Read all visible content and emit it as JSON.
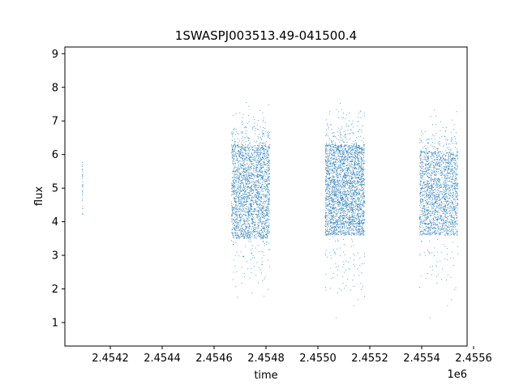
{
  "chart_data": {
    "type": "scatter",
    "title": "1SWASPJ003513.49-041500.4",
    "xlabel": "time",
    "ylabel": "flux",
    "x_offset_label": "1e6",
    "xlim": [
      2454025,
      2455575
    ],
    "ylim": [
      0.3,
      9.2
    ],
    "x_ticks": [
      2454200,
      2454400,
      2454600,
      2454800,
      2455000,
      2455200,
      2455400,
      2455600
    ],
    "x_tick_labels": [
      "2.4542",
      "2.4544",
      "2.4546",
      "2.4548",
      "2.4550",
      "2.4552",
      "2.4554",
      "2.4556"
    ],
    "y_ticks": [
      1,
      2,
      3,
      4,
      5,
      6,
      7,
      8,
      9
    ],
    "y_tick_labels": [
      "1",
      "2",
      "3",
      "4",
      "5",
      "6",
      "7",
      "8",
      "9"
    ],
    "grid": false,
    "marker_color": "#1f77b4",
    "observing_seasons": [
      {
        "x_start": 2454092,
        "x_end": 2454094,
        "flux_low": 4.2,
        "flux_high": 5.9,
        "approx_points": 30
      },
      {
        "x_start": 2454667,
        "x_end": 2454815,
        "flux_low": 3.5,
        "flux_high": 6.3,
        "approx_points": 2500
      },
      {
        "x_start": 2455028,
        "x_end": 2455180,
        "flux_low": 3.6,
        "flux_high": 6.3,
        "approx_points": 3000
      },
      {
        "x_start": 2455392,
        "x_end": 2455540,
        "flux_low": 3.6,
        "flux_high": 6.1,
        "approx_points": 2000
      }
    ]
  }
}
